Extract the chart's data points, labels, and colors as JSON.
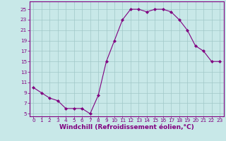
{
  "x": [
    0,
    1,
    2,
    3,
    4,
    5,
    6,
    7,
    8,
    9,
    10,
    11,
    12,
    13,
    14,
    15,
    16,
    17,
    18,
    19,
    20,
    21,
    22,
    23
  ],
  "y": [
    10,
    9,
    8,
    7.5,
    6,
    6,
    6,
    5,
    8.5,
    15,
    19,
    23,
    25,
    25,
    24.5,
    25,
    25,
    24.5,
    23,
    21,
    18,
    17,
    15,
    15
  ],
  "line_color": "#800080",
  "marker_color": "#800080",
  "bg_color": "#c8e8e8",
  "grid_color": "#a0c8c8",
  "axis_color": "#800080",
  "xlabel": "Windchill (Refroidissement éolien,°C)",
  "xlabel_color": "#800080",
  "ylim": [
    4.5,
    26.5
  ],
  "xlim": [
    -0.5,
    23.5
  ],
  "yticks": [
    5,
    7,
    9,
    11,
    13,
    15,
    17,
    19,
    21,
    23,
    25
  ],
  "xticks": [
    0,
    1,
    2,
    3,
    4,
    5,
    6,
    7,
    8,
    9,
    10,
    11,
    12,
    13,
    14,
    15,
    16,
    17,
    18,
    19,
    20,
    21,
    22,
    23
  ],
  "tick_color": "#800080",
  "tick_fontsize": 5.2,
  "xlabel_fontsize": 6.5
}
